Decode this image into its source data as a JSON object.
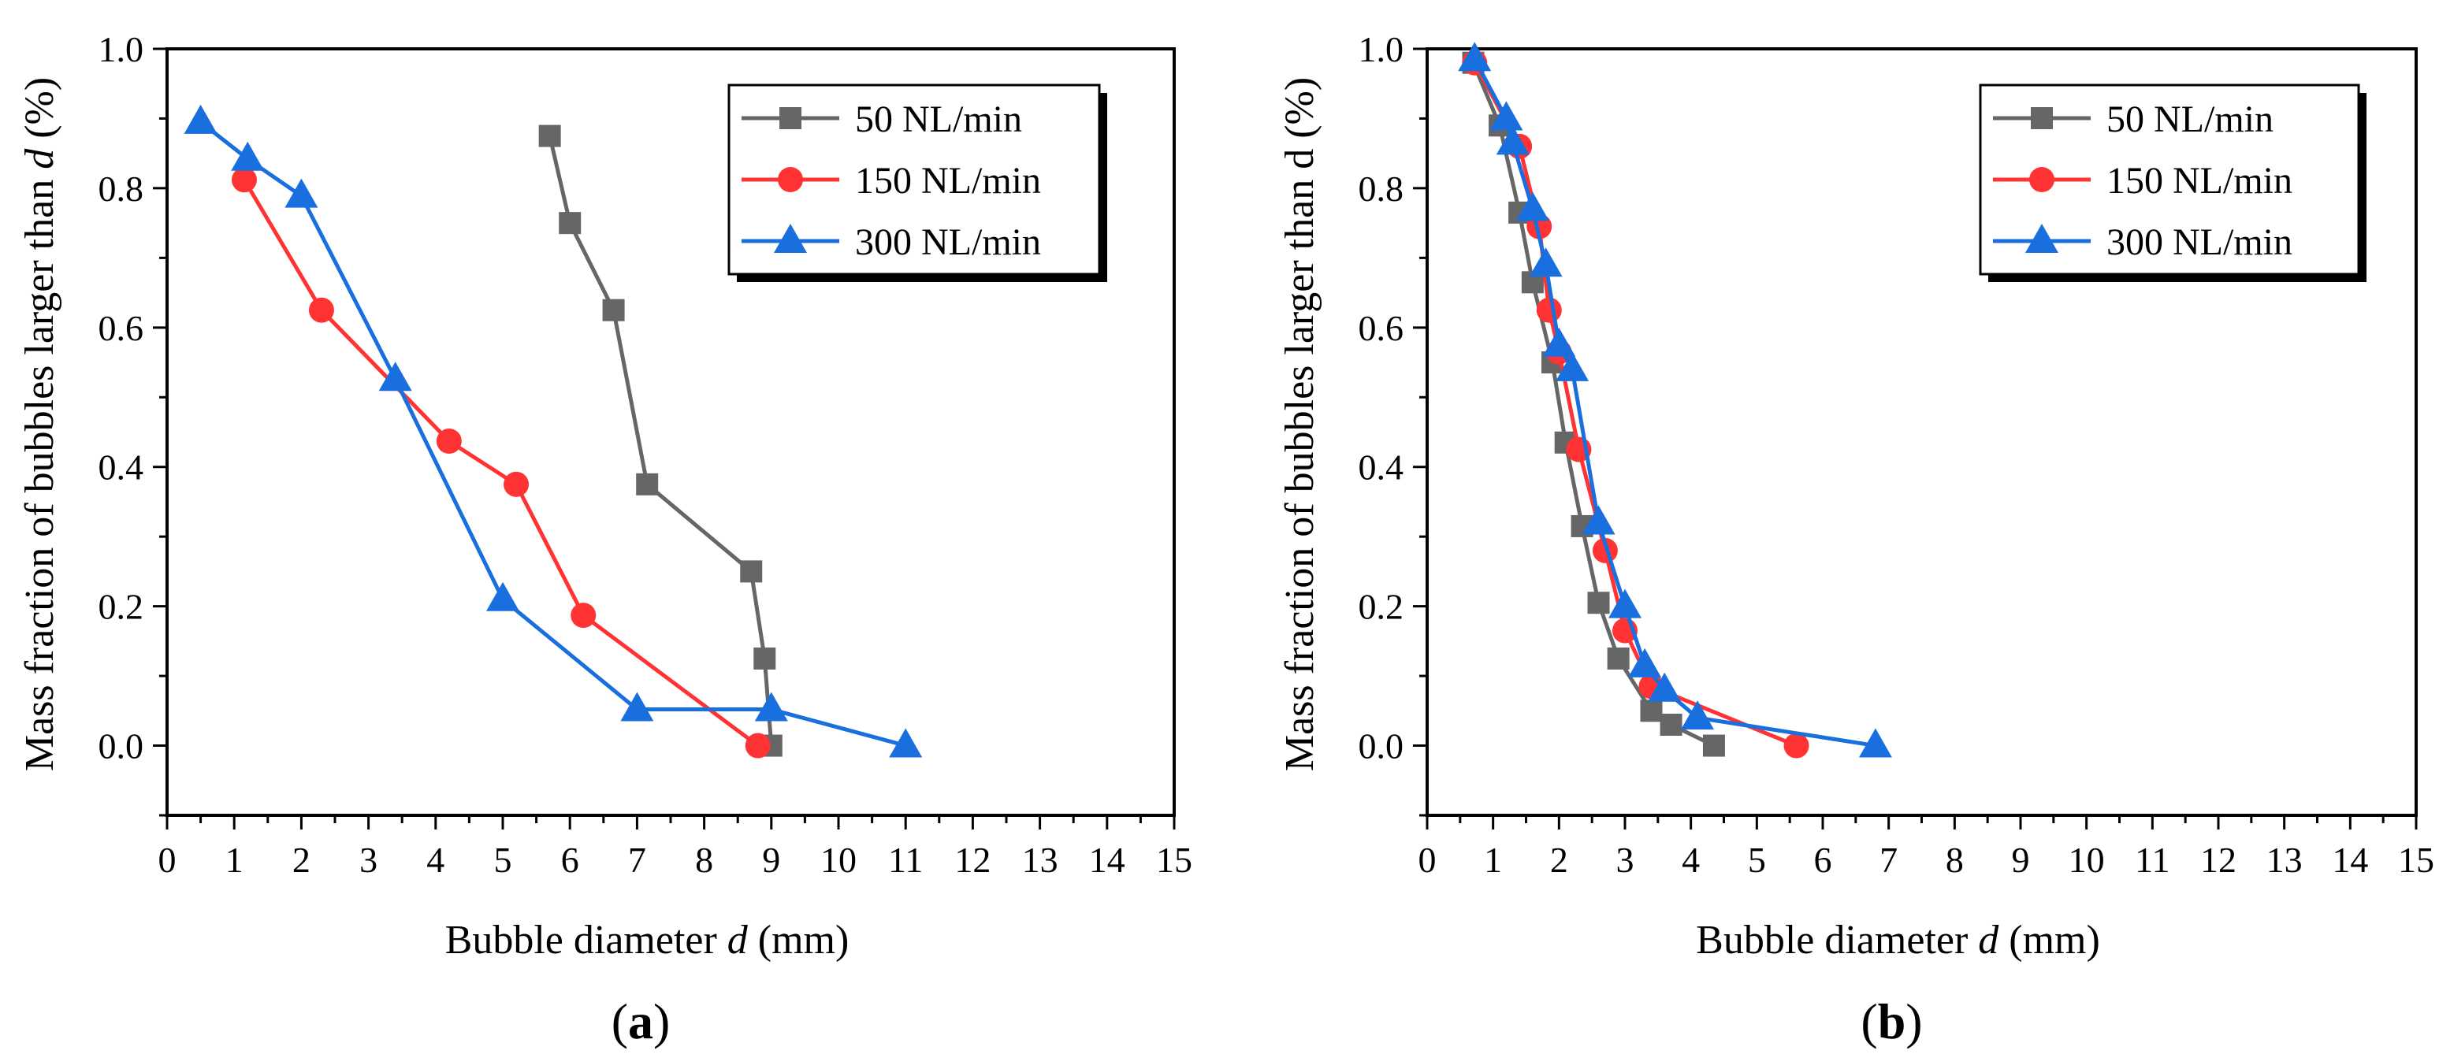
{
  "chart_data": [
    {
      "id": "a",
      "type": "line",
      "panel_label": "a",
      "xlabel": "Bubble diameter",
      "xlabel_var": "d",
      "xlabel_unit": "(mm)",
      "ylabel": "Mass fraction of bubbles larger than",
      "ylabel_var": "d",
      "ylabel_unit": "(%)",
      "xlim": [
        0,
        15
      ],
      "ylim": [
        -0.1,
        1.0
      ],
      "xticks": [
        0,
        1,
        2,
        3,
        4,
        5,
        6,
        7,
        8,
        9,
        10,
        11,
        12,
        13,
        14,
        15
      ],
      "yticks": [
        0.0,
        0.2,
        0.4,
        0.6,
        0.8,
        1.0
      ],
      "grid": false,
      "legend_position": "top-right",
      "series": [
        {
          "name": "50 NL/min",
          "color": "#666666",
          "marker": "square",
          "x": [
            5.7,
            6.0,
            6.65,
            7.15,
            8.7,
            8.9,
            9.0
          ],
          "y": [
            0.875,
            0.75,
            0.625,
            0.375,
            0.25,
            0.125,
            0.0
          ]
        },
        {
          "name": "150 NL/min",
          "color": "#ff3333",
          "marker": "circle",
          "x": [
            1.15,
            2.3,
            4.2,
            5.2,
            6.2,
            8.8
          ],
          "y": [
            0.812,
            0.625,
            0.437,
            0.375,
            0.187,
            0.0
          ]
        },
        {
          "name": "300 NL/min",
          "color": "#1a6fdf",
          "marker": "triangle",
          "x": [
            0.5,
            1.2,
            2.0,
            3.4,
            5.0,
            7.0,
            9.0,
            11.0
          ],
          "y": [
            0.895,
            0.842,
            0.789,
            0.526,
            0.21,
            0.052,
            0.052,
            0.0
          ]
        }
      ]
    },
    {
      "id": "b",
      "type": "line",
      "panel_label": "b",
      "xlabel": "Bubble diameter",
      "xlabel_var": "d",
      "xlabel_unit": "(mm)",
      "ylabel": "Mass fraction of bubbles larger than d (%)",
      "ylabel_var": "",
      "ylabel_unit": "",
      "xlim": [
        0,
        15
      ],
      "ylim": [
        -0.1,
        1.0
      ],
      "xticks": [
        0,
        1,
        2,
        3,
        4,
        5,
        6,
        7,
        8,
        9,
        10,
        11,
        12,
        13,
        14,
        15
      ],
      "yticks": [
        0.0,
        0.2,
        0.4,
        0.6,
        0.8,
        1.0
      ],
      "grid": false,
      "legend_position": "top-right",
      "series": [
        {
          "name": "50 NL/min",
          "color": "#666666",
          "marker": "square",
          "x": [
            0.7,
            1.1,
            1.4,
            1.6,
            1.9,
            2.1,
            2.35,
            2.6,
            2.9,
            3.4,
            3.7,
            4.35
          ],
          "y": [
            0.98,
            0.89,
            0.765,
            0.665,
            0.55,
            0.435,
            0.315,
            0.205,
            0.125,
            0.05,
            0.03,
            0.0
          ]
        },
        {
          "name": "150 NL/min",
          "color": "#ff3333",
          "marker": "circle",
          "x": [
            0.72,
            1.4,
            1.7,
            1.85,
            2.0,
            2.3,
            2.7,
            3.0,
            3.4,
            5.6
          ],
          "y": [
            0.98,
            0.86,
            0.745,
            0.625,
            0.565,
            0.425,
            0.28,
            0.165,
            0.085,
            0.0
          ]
        },
        {
          "name": "300 NL/min",
          "color": "#1a6fdf",
          "marker": "triangle",
          "x": [
            0.72,
            1.2,
            1.3,
            1.6,
            1.8,
            2.0,
            2.2,
            2.6,
            3.0,
            3.3,
            3.6,
            4.1,
            6.8
          ],
          "y": [
            0.985,
            0.9,
            0.865,
            0.77,
            0.69,
            0.575,
            0.54,
            0.32,
            0.2,
            0.115,
            0.08,
            0.04,
            0.0
          ]
        }
      ]
    }
  ]
}
